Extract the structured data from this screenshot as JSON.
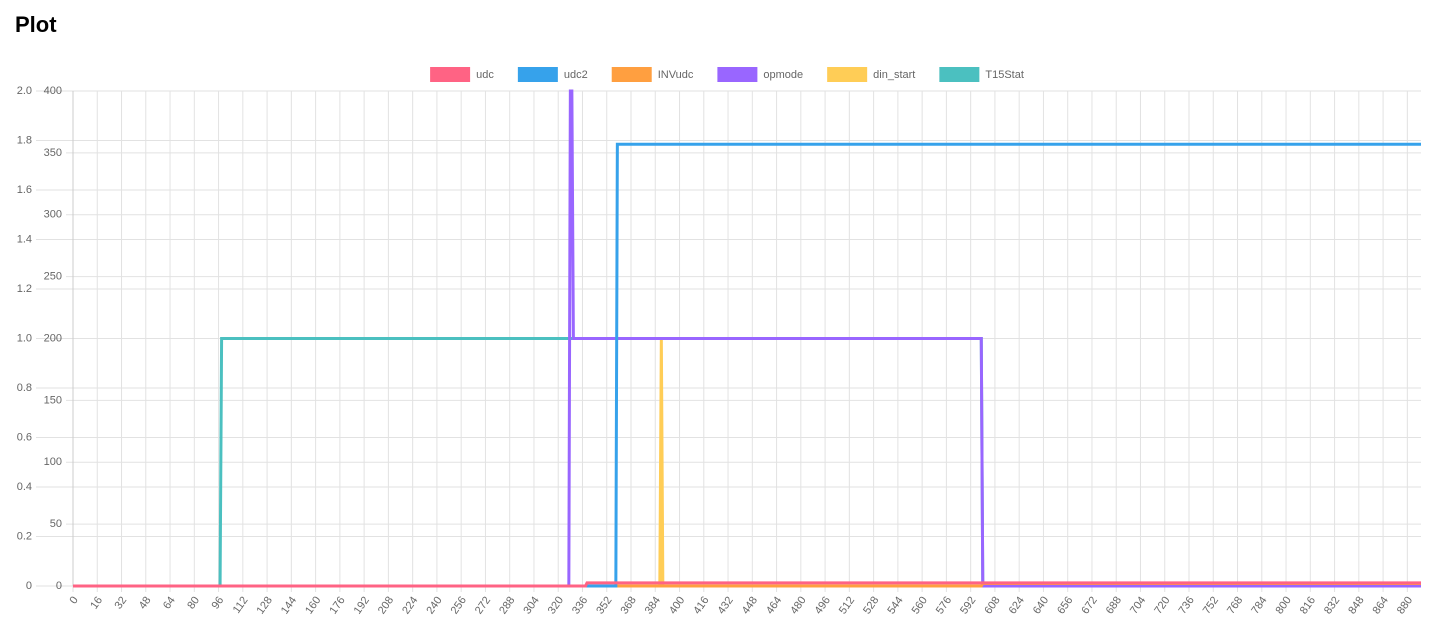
{
  "title": "Plot",
  "chart_data": {
    "type": "line",
    "xlim": [
      0,
      889
    ],
    "xticks": [
      0,
      16,
      32,
      48,
      64,
      80,
      96,
      112,
      128,
      144,
      160,
      176,
      192,
      208,
      224,
      240,
      256,
      272,
      288,
      304,
      320,
      336,
      352,
      368,
      384,
      400,
      416,
      432,
      448,
      464,
      480,
      496,
      512,
      528,
      544,
      560,
      576,
      592,
      608,
      624,
      640,
      656,
      672,
      688,
      704,
      720,
      736,
      752,
      768,
      784,
      800,
      816,
      832,
      848,
      864,
      880
    ],
    "ylim": [
      0,
      2
    ],
    "yticks": [
      0,
      0.2,
      0.4,
      0.6,
      0.8,
      {
        "value": 1,
        "label": "1.0"
      },
      1.2,
      1.4,
      1.6,
      1.8,
      {
        "value": 2,
        "label": "2.0"
      }
    ],
    "y2lim": [
      0,
      400
    ],
    "y2ticks": [
      0,
      50,
      100,
      150,
      200,
      250,
      300,
      350,
      400
    ],
    "grid": true,
    "legend": "top",
    "series": [
      {
        "name": "udc",
        "color": "#ff6384",
        "axis": "y2",
        "x": [
          0,
          338,
          339,
          889
        ],
        "values": [
          0,
          0,
          2.5,
          2.5
        ]
      },
      {
        "name": "udc2",
        "color": "#36a2eb",
        "axis": "y2",
        "x": [
          0,
          358,
          359,
          889
        ],
        "values": [
          0,
          0,
          357,
          357
        ]
      },
      {
        "name": "INVudc",
        "color": "#ff9f40",
        "axis": "y2",
        "x": [
          0,
          599,
          600,
          889
        ],
        "values": [
          0,
          0,
          2,
          2
        ]
      },
      {
        "name": "opmode",
        "color": "#9966ff",
        "x": [
          0,
          327,
          328,
          329,
          330,
          599,
          600,
          889
        ],
        "values": [
          0,
          0,
          2,
          2,
          1,
          1,
          0,
          0
        ]
      },
      {
        "name": "din_start",
        "color": "#ffcd56",
        "x": [
          0,
          387,
          388,
          389,
          889
        ],
        "values": [
          0,
          0,
          1,
          0,
          0
        ]
      },
      {
        "name": "T15Stat",
        "color": "#4bc0c0",
        "x": [
          0,
          97,
          98,
          599,
          600,
          889
        ],
        "values": [
          0,
          0,
          1,
          1,
          0,
          0
        ]
      }
    ]
  }
}
